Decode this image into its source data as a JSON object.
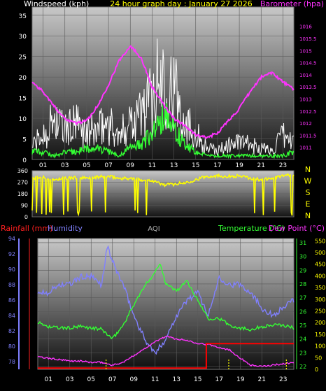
{
  "page": {
    "title": "24 hour graph day : January 27 2026"
  },
  "chart_data": [
    {
      "type": "line",
      "panel": "wind_barometer",
      "title": "24 hour graph day : January 27 2026",
      "left_axis_label": "Windspeed (kph)",
      "right_axis_label": "Barometer (hpa)",
      "xlim": [
        0,
        24
      ],
      "ylim_left": [
        0,
        37
      ],
      "ylim_right": [
        1010.5,
        1016.8
      ],
      "left_ticks": [
        0,
        5,
        10,
        15,
        20,
        25,
        30,
        35
      ],
      "right_ticks": [
        "1011",
        "1011.5",
        "1012",
        "1012.5",
        "1013",
        "1013.5",
        "1014",
        "1014.5",
        "1015",
        "1015.5",
        "1016"
      ],
      "x_tick_labels": [
        "01",
        "03",
        "05",
        "07",
        "09",
        "11",
        "13",
        "15",
        "17",
        "19",
        "21",
        "23"
      ],
      "x_tick_values": [
        1,
        3,
        5,
        7,
        9,
        11,
        13,
        15,
        17,
        19,
        21,
        23
      ],
      "grid": true,
      "series": [
        {
          "name": "Barometer (hpa)",
          "axis": "right",
          "color": "#ff33ff",
          "x": [
            0,
            1,
            2,
            3,
            4,
            5,
            6,
            7,
            8,
            9,
            10,
            11,
            12,
            13,
            14,
            15,
            16,
            17,
            18,
            19,
            20,
            21,
            22,
            23,
            24
          ],
          "y": [
            1013.7,
            1013.3,
            1012.7,
            1012.2,
            1012.0,
            1012.1,
            1012.7,
            1013.6,
            1014.6,
            1015.2,
            1014.7,
            1013.5,
            1012.8,
            1012.2,
            1011.9,
            1011.5,
            1011.4,
            1011.6,
            1012.1,
            1012.6,
            1013.3,
            1013.9,
            1014.1,
            1013.7,
            1013.4
          ]
        },
        {
          "name": "Wind gust",
          "axis": "left",
          "color": "#ffffff",
          "x": [
            0,
            1,
            2,
            3,
            4,
            5,
            6,
            7,
            8,
            9,
            10,
            11,
            12,
            13,
            14,
            15,
            16,
            17,
            18,
            19,
            20,
            21,
            22,
            23,
            24
          ],
          "y": [
            5,
            8,
            14,
            10,
            12,
            9,
            10,
            13,
            7,
            15,
            16,
            22,
            30,
            24,
            14,
            9,
            4,
            3,
            5,
            6,
            5,
            4,
            3,
            8,
            6
          ]
        },
        {
          "name": "Wind average",
          "axis": "left",
          "color": "#33ff33",
          "x": [
            0,
            1,
            2,
            3,
            4,
            5,
            6,
            7,
            8,
            9,
            10,
            11,
            12,
            13,
            14,
            15,
            16,
            17,
            18,
            19,
            20,
            21,
            22,
            23,
            24
          ],
          "y": [
            2,
            2,
            1,
            2,
            2,
            3,
            3,
            2,
            1,
            3,
            4,
            7,
            12,
            8,
            4,
            2,
            1,
            1,
            1,
            1,
            1,
            1,
            1,
            1,
            2
          ]
        }
      ]
    },
    {
      "type": "scatter",
      "panel": "wind_direction",
      "ylim": [
        0,
        360
      ],
      "left_ticks": [
        0,
        90,
        180,
        270,
        360
      ],
      "right_labels": [
        "N",
        "W",
        "S",
        "E",
        "N"
      ],
      "color": "#ffff00",
      "x": [
        0,
        1,
        2,
        3,
        4,
        5,
        6,
        7,
        8,
        9,
        10,
        11,
        12,
        13,
        14,
        15,
        16,
        17,
        18,
        19,
        20,
        21,
        22,
        23,
        24
      ],
      "y": [
        300,
        310,
        290,
        300,
        305,
        300,
        310,
        315,
        300,
        300,
        290,
        285,
        250,
        255,
        265,
        290,
        315,
        320,
        315,
        320,
        300,
        290,
        300,
        320,
        325
      ]
    },
    {
      "type": "line",
      "panel": "rain_humidity_temperature",
      "labels": {
        "rainfall": "Rainfall (mm)",
        "humidity": "Humidity",
        "aqi": "AQI",
        "temperature": "Temperature (°C)",
        "dew_point": "Dew Point (°C)"
      },
      "xlim": [
        0,
        24
      ],
      "humidity_ylim": [
        77,
        94
      ],
      "humidity_ticks": [
        78,
        80,
        82,
        84,
        86,
        88,
        90,
        92,
        94
      ],
      "temperature_ylim": [
        21.8,
        31.3
      ],
      "temperature_ticks": [
        22,
        23,
        24,
        25,
        26,
        27,
        28,
        29,
        30,
        31
      ],
      "aqi_ylim": [
        0,
        560
      ],
      "aqi_ticks": [
        0,
        50,
        100,
        150,
        200,
        250,
        300,
        350,
        400,
        450,
        500,
        550
      ],
      "x_tick_labels": [
        "01",
        "03",
        "05",
        "07",
        "09",
        "11",
        "13",
        "15",
        "17",
        "19",
        "21",
        "23"
      ],
      "x_tick_values": [
        1,
        3,
        5,
        7,
        9,
        11,
        13,
        15,
        17,
        19,
        21,
        23
      ],
      "grid": true,
      "series": [
        {
          "name": "Humidity",
          "axis": "humidity",
          "color": "#8080ff",
          "x": [
            0,
            1,
            2,
            3,
            4,
            5,
            6,
            6.5,
            7,
            8,
            9,
            10,
            11,
            12,
            13,
            14,
            15,
            16,
            17,
            18,
            19,
            20,
            21,
            22,
            23,
            24
          ],
          "y": [
            87,
            87,
            88,
            88,
            89,
            89,
            88,
            93,
            91,
            88,
            84,
            81,
            79,
            81,
            84,
            86,
            87,
            84,
            89,
            88,
            88,
            87,
            85,
            84,
            85,
            86
          ]
        },
        {
          "name": "Temperature (°C)",
          "axis": "temperature",
          "color": "#33ff33",
          "x": [
            0,
            1,
            2,
            3,
            4,
            5,
            6,
            7,
            8,
            9,
            10,
            11,
            11.5,
            12,
            13,
            14,
            15,
            16,
            17,
            18,
            19,
            20,
            21,
            22,
            23,
            24
          ],
          "y": [
            25.2,
            24.9,
            24.8,
            24.8,
            24.9,
            24.8,
            24.7,
            24.0,
            25.0,
            26.5,
            27.8,
            28.9,
            29.5,
            28.0,
            27.5,
            28.2,
            26.8,
            25.5,
            25.5,
            25.0,
            24.8,
            24.7,
            24.9,
            25.0,
            25.0,
            24.8
          ]
        },
        {
          "name": "Dew Point (°C)",
          "axis": "temperature",
          "color": "#ff33ff",
          "x": [
            0,
            1,
            2,
            3,
            4,
            5,
            6,
            7,
            8,
            9,
            10,
            11,
            12,
            13,
            14,
            15,
            16,
            17,
            18,
            19,
            20,
            21,
            22,
            23,
            24
          ],
          "y": [
            22.7,
            22.6,
            22.5,
            22.4,
            22.4,
            22.3,
            22.3,
            22.1,
            22.3,
            22.8,
            23.3,
            23.8,
            24.2,
            24.0,
            23.9,
            23.7,
            23.6,
            23.4,
            23.2,
            22.6,
            22.1,
            22.0,
            22.1,
            22.2,
            22.3
          ]
        },
        {
          "name": "Rainfall (mm)",
          "axis": "aqi",
          "color": "#ff0000",
          "x": [
            0,
            15.8,
            15.8,
            24
          ],
          "y": [
            5,
            5,
            110,
            110
          ]
        }
      ],
      "aqi_markers_x": [
        6.4,
        17.9,
        23.3
      ],
      "aqi_marker_color": "#ffff00"
    }
  ]
}
